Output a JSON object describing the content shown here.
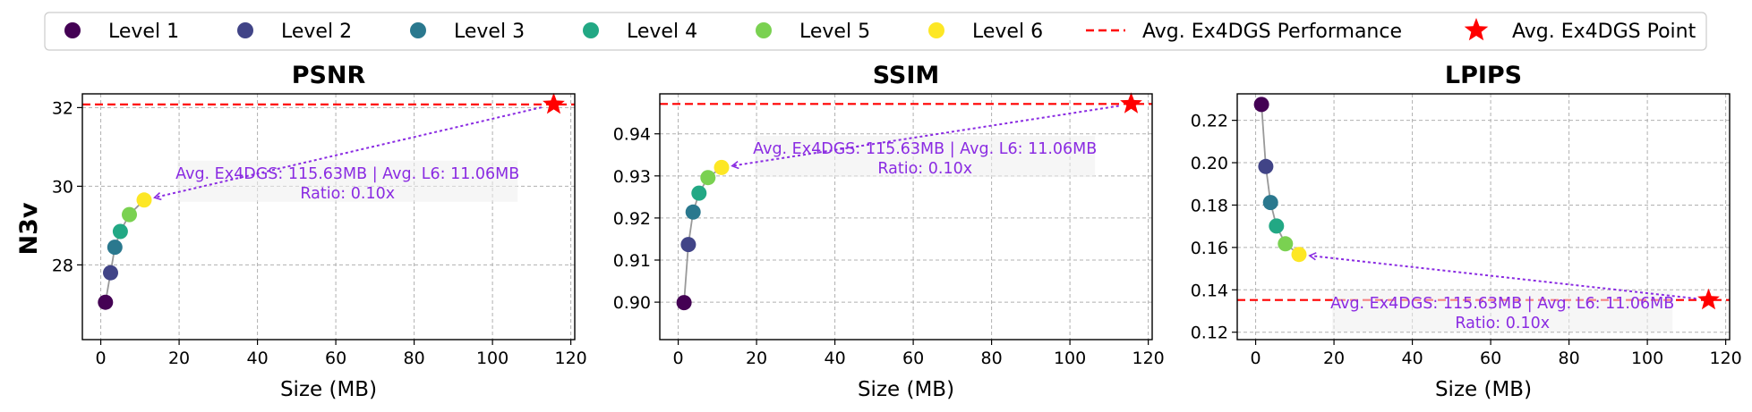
{
  "legend": {
    "items": [
      {
        "label": "Level 1",
        "kind": "dot",
        "color": "#440154"
      },
      {
        "label": "Level 2",
        "kind": "dot",
        "color": "#414487"
      },
      {
        "label": "Level 3",
        "kind": "dot",
        "color": "#2a788e"
      },
      {
        "label": "Level 4",
        "kind": "dot",
        "color": "#22a884"
      },
      {
        "label": "Level 5",
        "kind": "dot",
        "color": "#7ad151"
      },
      {
        "label": "Level 6",
        "kind": "dot",
        "color": "#fde725"
      },
      {
        "label": "Avg. Ex4DGS Performance",
        "kind": "dashline",
        "color": "#ff0000"
      },
      {
        "label": "Avg. Ex4DGS Point",
        "kind": "star",
        "color": "#ff0000"
      }
    ]
  },
  "row_label": "N3v",
  "colors": {
    "levels": [
      "#440154",
      "#414487",
      "#2a788e",
      "#22a884",
      "#7ad151",
      "#fde725"
    ],
    "reference": "#ff0000",
    "annotation": "#8a2be2",
    "connector": "#999999"
  },
  "chart_data": [
    {
      "type": "scatter",
      "title": "PSNR",
      "xlabel": "Size (MB)",
      "ylabel": "",
      "xlim": [
        -4.7,
        121.0
      ],
      "ylim": [
        26.1,
        32.35
      ],
      "xticks": [
        0,
        20,
        40,
        60,
        80,
        100,
        120
      ],
      "yticks": [
        28,
        30,
        32
      ],
      "ytick_labels": [
        "28",
        "30",
        "32"
      ],
      "x": [
        1.2,
        2.5,
        3.6,
        5.0,
        7.3,
        11.06
      ],
      "values": [
        27.05,
        27.8,
        28.45,
        28.85,
        29.28,
        29.65
      ],
      "reference": {
        "x": 115.63,
        "y": 32.08
      },
      "annotation": [
        "Avg. Ex4DGS: 115.63MB | Avg. L6: 11.06MB",
        "Ratio: 0.10x"
      ],
      "annotation_anchor": {
        "x": 63,
        "y": 29.9
      }
    },
    {
      "type": "scatter",
      "title": "SSIM",
      "xlabel": "Size (MB)",
      "ylabel": "",
      "xlim": [
        -4.7,
        121.0
      ],
      "ylim": [
        0.8911,
        0.9495
      ],
      "xticks": [
        0,
        20,
        40,
        60,
        80,
        100,
        120
      ],
      "yticks": [
        0.9,
        0.91,
        0.92,
        0.93,
        0.94
      ],
      "ytick_labels": [
        "0.90",
        "0.91",
        "0.92",
        "0.93",
        "0.94"
      ],
      "x": [
        1.5,
        2.6,
        3.8,
        5.3,
        7.6,
        11.06
      ],
      "values": [
        0.8999,
        0.9137,
        0.9214,
        0.9259,
        0.9296,
        0.932
      ],
      "reference": {
        "x": 115.63,
        "y": 0.9471
      },
      "annotation": [
        "Avg. Ex4DGS: 115.63MB | Avg. L6: 11.06MB",
        "Ratio: 0.10x"
      ],
      "annotation_anchor": {
        "x": 63,
        "y": 0.9325
      }
    },
    {
      "type": "scatter",
      "title": "LPIPS",
      "xlabel": "Size (MB)",
      "ylabel": "",
      "xlim": [
        -4.7,
        121.0
      ],
      "ylim": [
        0.1165,
        0.2325
      ],
      "xticks": [
        0,
        20,
        40,
        60,
        80,
        100,
        120
      ],
      "yticks": [
        0.12,
        0.14,
        0.16,
        0.18,
        0.2,
        0.22
      ],
      "ytick_labels": [
        "0.12",
        "0.14",
        "0.16",
        "0.18",
        "0.20",
        "0.22"
      ],
      "x": [
        1.5,
        2.6,
        3.8,
        5.3,
        7.6,
        11.06
      ],
      "values": [
        0.2275,
        0.1982,
        0.1812,
        0.1701,
        0.1617,
        0.1567
      ],
      "reference": {
        "x": 115.63,
        "y": 0.1352
      },
      "annotation": [
        "Avg. Ex4DGS: 115.63MB | Avg. L6: 11.06MB",
        "Ratio: 0.10x"
      ],
      "annotation_anchor": {
        "x": 63,
        "y": 0.1325
      }
    }
  ]
}
